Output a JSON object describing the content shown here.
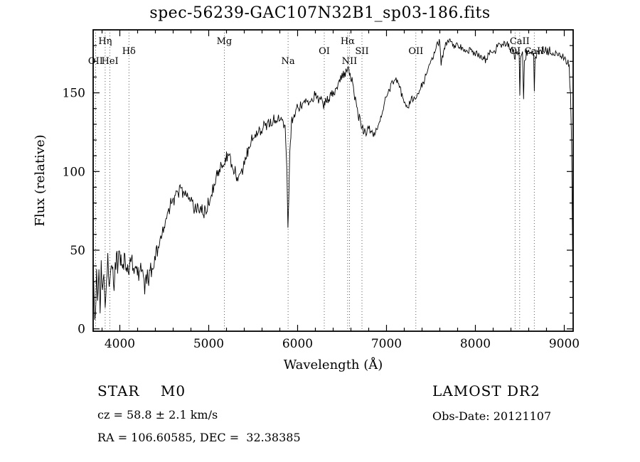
{
  "chart_data": {
    "type": "line",
    "title": "spec-56239-GAC107N32B1_sp03-186.fits",
    "xlabel": "Wavelength (Å)",
    "ylabel": "Flux (relative)",
    "xlim": [
      3700,
      9100
    ],
    "ylim": [
      -1.5,
      190
    ],
    "x_ticks_major": [
      4000,
      5000,
      6000,
      7000,
      8000,
      9000
    ],
    "x_tick_minor_step": 200,
    "y_ticks_major": [
      0,
      50,
      100,
      150
    ],
    "y_tick_minor_step": 10,
    "grid": false,
    "line_color": "#000000",
    "spectral_lines": [
      {
        "label": "OII",
        "wavelength": 3727,
        "row": 2
      },
      {
        "label": "Hη",
        "wavelength": 3835,
        "row": 0
      },
      {
        "label": "HeI",
        "wavelength": 3889,
        "row": 2
      },
      {
        "label": "Hδ",
        "wavelength": 4102,
        "row": 1
      },
      {
        "label": "Mg",
        "wavelength": 5175,
        "row": 0
      },
      {
        "label": "Na",
        "wavelength": 5893,
        "row": 2
      },
      {
        "label": "OI",
        "wavelength": 6300,
        "row": 1
      },
      {
        "label": "Hα",
        "wavelength": 6563,
        "row": 0
      },
      {
        "label": "NII",
        "wavelength": 6583,
        "row": 2
      },
      {
        "label": "SII",
        "wavelength": 6724,
        "row": 1
      },
      {
        "label": "OII",
        "wavelength": 7330,
        "row": 1
      },
      {
        "label": "OI",
        "wavelength": 8446,
        "row": 1
      },
      {
        "label": "CaII",
        "wavelength": 8498,
        "row": 0
      },
      {
        "label": "CaII",
        "wavelength": 8662,
        "row": 1
      }
    ],
    "noise": {
      "seed": 20121107,
      "step": 7,
      "amplitudes": [
        [
          4400,
          10
        ],
        [
          5000,
          6.5
        ],
        [
          6000,
          5
        ],
        [
          7000,
          4.2
        ],
        [
          9200,
          3.4
        ]
      ]
    },
    "series": [
      {
        "name": "spectrum",
        "anchors": [
          [
            3700,
            42
          ],
          [
            3712,
            18
          ],
          [
            3725,
            8
          ],
          [
            3738,
            32
          ],
          [
            3750,
            15
          ],
          [
            3765,
            38
          ],
          [
            3778,
            12
          ],
          [
            3790,
            34
          ],
          [
            3805,
            20
          ],
          [
            3820,
            36
          ],
          [
            3835,
            16
          ],
          [
            3850,
            33
          ],
          [
            3865,
            42
          ],
          [
            3880,
            28
          ],
          [
            3895,
            43
          ],
          [
            3915,
            36
          ],
          [
            3935,
            30
          ],
          [
            3955,
            44
          ],
          [
            3975,
            40
          ],
          [
            4000,
            46
          ],
          [
            4025,
            38
          ],
          [
            4050,
            45
          ],
          [
            4075,
            40
          ],
          [
            4102,
            34
          ],
          [
            4130,
            44
          ],
          [
            4160,
            38
          ],
          [
            4190,
            41
          ],
          [
            4220,
            35
          ],
          [
            4250,
            33
          ],
          [
            4280,
            30
          ],
          [
            4310,
            35
          ],
          [
            4340,
            31
          ],
          [
            4370,
            40
          ],
          [
            4400,
            46
          ],
          [
            4430,
            52
          ],
          [
            4460,
            58
          ],
          [
            4490,
            64
          ],
          [
            4520,
            70
          ],
          [
            4550,
            76
          ],
          [
            4580,
            81
          ],
          [
            4610,
            84
          ],
          [
            4640,
            87
          ],
          [
            4670,
            88
          ],
          [
            4700,
            87
          ],
          [
            4730,
            88
          ],
          [
            4760,
            85
          ],
          [
            4790,
            83
          ],
          [
            4820,
            80
          ],
          [
            4850,
            76
          ],
          [
            4880,
            77
          ],
          [
            4910,
            75
          ],
          [
            4940,
            74
          ],
          [
            4970,
            77
          ],
          [
            5000,
            80
          ],
          [
            5030,
            85
          ],
          [
            5060,
            91
          ],
          [
            5090,
            97
          ],
          [
            5120,
            102
          ],
          [
            5150,
            105
          ],
          [
            5175,
            103
          ],
          [
            5200,
            110
          ],
          [
            5230,
            111
          ],
          [
            5260,
            105
          ],
          [
            5290,
            100
          ],
          [
            5320,
            97
          ],
          [
            5350,
            96
          ],
          [
            5380,
            101
          ],
          [
            5410,
            107
          ],
          [
            5440,
            112
          ],
          [
            5470,
            117
          ],
          [
            5500,
            121
          ],
          [
            5530,
            122
          ],
          [
            5560,
            124
          ],
          [
            5590,
            126
          ],
          [
            5620,
            128
          ],
          [
            5650,
            129
          ],
          [
            5680,
            131
          ],
          [
            5710,
            132
          ],
          [
            5740,
            131
          ],
          [
            5770,
            133
          ],
          [
            5800,
            134
          ],
          [
            5830,
            132
          ],
          [
            5860,
            128
          ],
          [
            5880,
            100
          ],
          [
            5891,
            62
          ],
          [
            5900,
            80
          ],
          [
            5912,
            115
          ],
          [
            5930,
            130
          ],
          [
            5955,
            134
          ],
          [
            5980,
            138
          ],
          [
            6010,
            140
          ],
          [
            6040,
            142
          ],
          [
            6070,
            143
          ],
          [
            6100,
            144
          ],
          [
            6130,
            143
          ],
          [
            6160,
            146
          ],
          [
            6190,
            148
          ],
          [
            6220,
            146
          ],
          [
            6250,
            148
          ],
          [
            6280,
            145
          ],
          [
            6300,
            142
          ],
          [
            6320,
            145
          ],
          [
            6350,
            147
          ],
          [
            6380,
            150
          ],
          [
            6410,
            151
          ],
          [
            6440,
            153
          ],
          [
            6470,
            156
          ],
          [
            6500,
            160
          ],
          [
            6530,
            163
          ],
          [
            6563,
            166
          ],
          [
            6590,
            163
          ],
          [
            6620,
            156
          ],
          [
            6650,
            146
          ],
          [
            6680,
            137
          ],
          [
            6710,
            130
          ],
          [
            6740,
            126
          ],
          [
            6770,
            125
          ],
          [
            6800,
            127
          ],
          [
            6830,
            127
          ],
          [
            6860,
            124
          ],
          [
            6890,
            126
          ],
          [
            6920,
            131
          ],
          [
            6950,
            137
          ],
          [
            6980,
            143
          ],
          [
            7010,
            148
          ],
          [
            7040,
            153
          ],
          [
            7070,
            157
          ],
          [
            7100,
            159
          ],
          [
            7130,
            157
          ],
          [
            7160,
            152
          ],
          [
            7190,
            145
          ],
          [
            7220,
            141
          ],
          [
            7250,
            142
          ],
          [
            7280,
            145
          ],
          [
            7310,
            146
          ],
          [
            7340,
            148
          ],
          [
            7370,
            151
          ],
          [
            7400,
            155
          ],
          [
            7430,
            159
          ],
          [
            7460,
            164
          ],
          [
            7490,
            169
          ],
          [
            7520,
            173
          ],
          [
            7550,
            177
          ],
          [
            7580,
            182
          ],
          [
            7600,
            184
          ],
          [
            7614,
            167
          ],
          [
            7628,
            173
          ],
          [
            7650,
            178
          ],
          [
            7675,
            182
          ],
          [
            7700,
            184
          ],
          [
            7730,
            182
          ],
          [
            7760,
            180
          ],
          [
            7790,
            181
          ],
          [
            7820,
            180
          ],
          [
            7850,
            179
          ],
          [
            7880,
            177
          ],
          [
            7910,
            176
          ],
          [
            7940,
            177
          ],
          [
            7970,
            175
          ],
          [
            8000,
            176
          ],
          [
            8030,
            174
          ],
          [
            8060,
            172
          ],
          [
            8090,
            171
          ],
          [
            8120,
            171
          ],
          [
            8150,
            174
          ],
          [
            8180,
            176
          ],
          [
            8210,
            177
          ],
          [
            8240,
            178
          ],
          [
            8270,
            180
          ],
          [
            8300,
            181
          ],
          [
            8330,
            181
          ],
          [
            8360,
            180
          ],
          [
            8390,
            178
          ],
          [
            8420,
            177
          ],
          [
            8446,
            173
          ],
          [
            8470,
            176
          ],
          [
            8492,
            176
          ],
          [
            8500,
            149
          ],
          [
            8508,
            172
          ],
          [
            8530,
            176
          ],
          [
            8542,
            146
          ],
          [
            8552,
            170
          ],
          [
            8575,
            175
          ],
          [
            8600,
            177
          ],
          [
            8630,
            176
          ],
          [
            8655,
            175
          ],
          [
            8663,
            149
          ],
          [
            8672,
            172
          ],
          [
            8700,
            176
          ],
          [
            8730,
            177
          ],
          [
            8760,
            178
          ],
          [
            8790,
            177
          ],
          [
            8820,
            176
          ],
          [
            8850,
            176
          ],
          [
            8880,
            174
          ],
          [
            8910,
            175
          ],
          [
            8940,
            173
          ],
          [
            8970,
            174
          ],
          [
            9000,
            172
          ],
          [
            9030,
            170
          ],
          [
            9055,
            166
          ],
          [
            9070,
            150
          ],
          [
            9082,
            118
          ],
          [
            9092,
            60
          ],
          [
            9100,
            8
          ]
        ]
      }
    ]
  },
  "annotations": {
    "classification": "STAR    M0",
    "survey": "LAMOST DR2",
    "cz": "cz = 58.8 ± 2.1 km/s",
    "obs_date": "Obs-Date: 20121107",
    "radec": "RA = 106.60585, DEC =  32.38385"
  }
}
